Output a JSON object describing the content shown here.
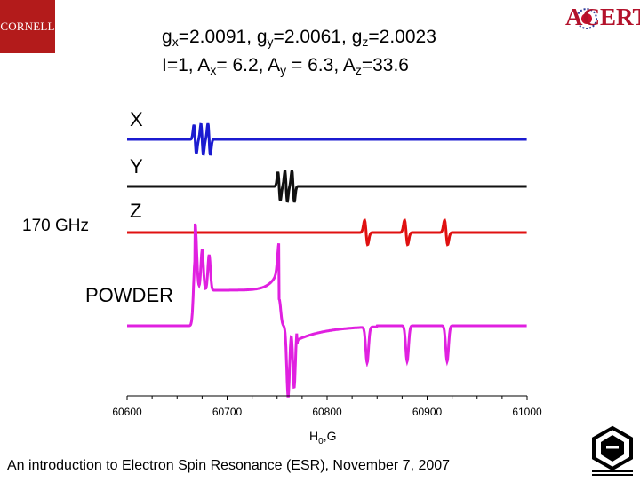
{
  "header": {
    "cornell_logo_text": "CORNELL",
    "acert_logo_text": "ACERT",
    "params_line1": {
      "gx": "2.0091",
      "gy": "2.0061",
      "gz": "2.0023"
    },
    "params_line2": {
      "I": "1",
      "Ax": "6.2",
      "Ay": "6.3",
      "Az": "33.6"
    }
  },
  "frequency_label": "170 GHz",
  "footer": "An introduction to Electron Spin Resonance (ESR), November 7, 2007",
  "chart_data": {
    "type": "line",
    "xlabel_main": "H",
    "xlabel_sub": "0",
    "xlabel_unit": ",G",
    "xlim": [
      60600,
      61000
    ],
    "xticks": [
      60600,
      60700,
      60800,
      60900,
      61000
    ],
    "series": [
      {
        "name": "X",
        "color": "#1b1bd0",
        "kind": "deriv",
        "centers": [
          60668,
          60675,
          60682
        ]
      },
      {
        "name": "Y",
        "color": "#111111",
        "kind": "deriv",
        "centers": [
          60752,
          60759,
          60766
        ]
      },
      {
        "name": "Z",
        "color": "#e01010",
        "kind": "deriv",
        "centers": [
          60839,
          60879,
          60919
        ]
      },
      {
        "name": "POWDER",
        "color": "#e020e0",
        "kind": "powder"
      }
    ]
  }
}
